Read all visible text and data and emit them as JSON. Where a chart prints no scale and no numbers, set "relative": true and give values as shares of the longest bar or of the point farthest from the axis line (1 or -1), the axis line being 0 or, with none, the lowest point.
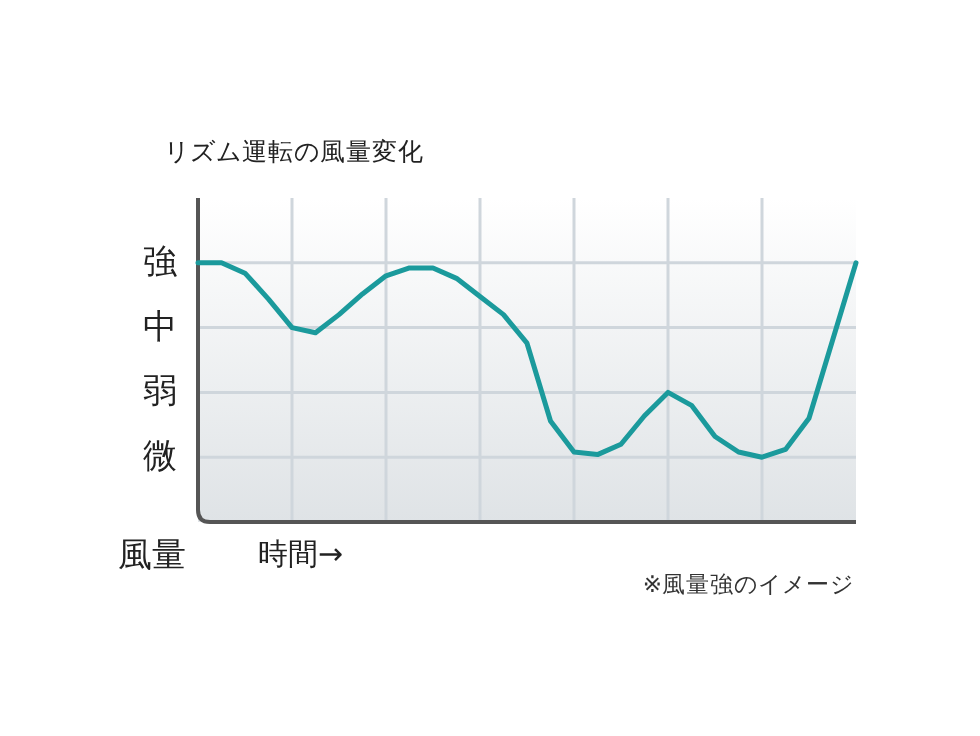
{
  "chart_data": {
    "type": "line",
    "title": "リズム運転の風量変化",
    "xlabel": "時間→",
    "ylabel": "風量",
    "annotations": [
      "強",
      "中",
      "弱",
      "微",
      "※風量強のイメージ"
    ],
    "relative": true,
    "categories": [
      null,
      null,
      null,
      null,
      null,
      null,
      null,
      null,
      null,
      null,
      null,
      null,
      null,
      null,
      null,
      null,
      null,
      null,
      null,
      null,
      null,
      null,
      null,
      null,
      null,
      null,
      null,
      null,
      null
    ],
    "series": [
      {
        "color": "#1b9a9c",
        "values": [
          1,
          1,
          0.96,
          0.86,
          0.75,
          0.73,
          0.8,
          0.88,
          0.95,
          0.98,
          0.98,
          0.94,
          0.87,
          0.8,
          0.69,
          0.39,
          0.27,
          0.26,
          0.3,
          0.41,
          0.5,
          0.45,
          0.33,
          0.27,
          0.25,
          0.28,
          0.4,
          0.7,
          1
        ]
      }
    ],
    "grid": true,
    "marker": "none",
    "line_style": "solid"
  }
}
